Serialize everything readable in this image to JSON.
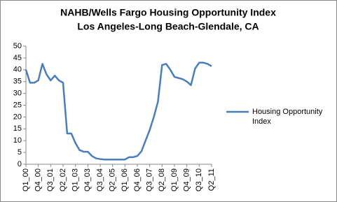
{
  "chart_data": {
    "type": "line",
    "title": "NAHB/Wells Fargo Housing Opportunity Index",
    "subtitle": "Los Angeles-Long Beach-Glendale, CA",
    "categories": [
      "Q1_00",
      null,
      null,
      "Q4_00",
      null,
      null,
      "Q3_01",
      null,
      null,
      "Q2_02",
      null,
      null,
      "Q1_03",
      null,
      null,
      "Q4_03",
      null,
      null,
      "Q3_04",
      null,
      null,
      "Q2_05",
      null,
      null,
      "Q1_06",
      null,
      null,
      "Q4_06",
      null,
      null,
      "Q3_07",
      null,
      null,
      "Q2_08",
      null,
      null,
      "Q1_09",
      null,
      null,
      "Q4_09",
      null,
      null,
      "Q3_10",
      null,
      null,
      "Q2_11"
    ],
    "series": [
      {
        "name": "Housing Opportunity Index",
        "color": "#4a7ebb",
        "values": [
          40,
          34.5,
          34.5,
          35.5,
          42.5,
          38,
          35.5,
          37.5,
          35.5,
          34.5,
          13,
          13,
          9,
          6,
          5.3,
          5.3,
          3.5,
          2.5,
          2.2,
          2,
          2,
          2,
          2,
          2,
          2,
          3,
          3,
          3.5,
          5.5,
          10,
          14.5,
          20,
          26.5,
          42,
          42.5,
          40,
          37,
          36.5,
          36,
          35,
          33.5,
          40.5,
          43,
          43,
          42.5,
          41.5
        ]
      }
    ],
    "ylim": [
      0,
      50
    ],
    "yticks": [
      0,
      5,
      10,
      15,
      20,
      25,
      30,
      35,
      40,
      45,
      50
    ],
    "grid": false,
    "legend": "right"
  }
}
